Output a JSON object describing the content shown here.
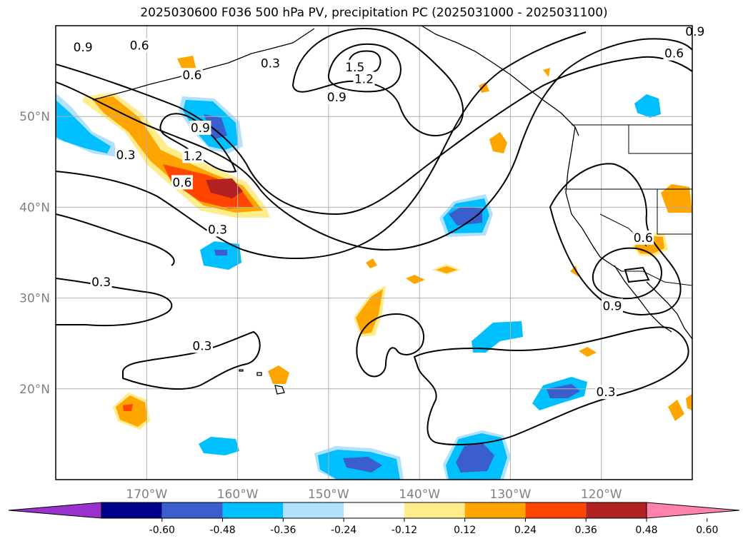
{
  "title": "2025030600 F036 500 hPa PV, precipitation PC (2025031000 - 2025031100)",
  "lat_ticks": [
    {
      "label": "50°N",
      "lat": 50
    },
    {
      "label": "40°N",
      "lat": 40
    },
    {
      "label": "30°N",
      "lat": 30
    },
    {
      "label": "20°N",
      "lat": 20
    }
  ],
  "lon_ticks": [
    {
      "label": "170°W",
      "lon": -170
    },
    {
      "label": "160°W",
      "lon": -160
    },
    {
      "label": "150°W",
      "lon": -150
    },
    {
      "label": "140°W",
      "lon": -140
    },
    {
      "label": "130°W",
      "lon": -130
    },
    {
      "label": "120°W",
      "lon": -120
    }
  ],
  "contour_labels": [
    {
      "text": "0.9",
      "lon": -177,
      "lat": 57.5
    },
    {
      "text": "0.6",
      "lon": -170.8,
      "lat": 57.7
    },
    {
      "text": "0.6",
      "lon": -165,
      "lat": 54.4
    },
    {
      "text": "0.3",
      "lon": -156.4,
      "lat": 55.7
    },
    {
      "text": "1.5",
      "lon": -147.1,
      "lat": 55.3
    },
    {
      "text": "1.2",
      "lon": -146.1,
      "lat": 54
    },
    {
      "text": "0.9",
      "lon": -149.1,
      "lat": 52
    },
    {
      "text": "0.6",
      "lon": -112,
      "lat": 56.8
    },
    {
      "text": "0.9",
      "lon": -109.7,
      "lat": 59.2
    },
    {
      "text": "0.9",
      "lon": -164.1,
      "lat": 48.6
    },
    {
      "text": "1.2",
      "lon": -164.9,
      "lat": 45.5
    },
    {
      "text": "0.3",
      "lon": -172.3,
      "lat": 45.6
    },
    {
      "text": "0.6",
      "lon": -166.1,
      "lat": 42.6
    },
    {
      "text": "0.3",
      "lon": -162.2,
      "lat": 37.4
    },
    {
      "text": "0.3",
      "lon": -175,
      "lat": 31.6
    },
    {
      "text": "0.3",
      "lon": -163.9,
      "lat": 24.6
    },
    {
      "text": "0.9",
      "lon": -118.8,
      "lat": 29
    },
    {
      "text": "0.6",
      "lon": -115.4,
      "lat": 36.5
    },
    {
      "text": "0.3",
      "lon": -119.5,
      "lat": 19.5
    }
  ],
  "colorbar": {
    "ticks": [
      "-0.60",
      "-0.48",
      "-0.36",
      "-0.24",
      "-0.12",
      "0.12",
      "0.24",
      "0.36",
      "0.48",
      "0.60"
    ],
    "colors": [
      "#9932cc",
      "#00008b",
      "#3a5fcd",
      "#00bfff",
      "#b0e2ff",
      "#ffffff",
      "#ffec8b",
      "#ffa500",
      "#ff4500",
      "#b22222",
      "#ff82ab"
    ]
  }
}
